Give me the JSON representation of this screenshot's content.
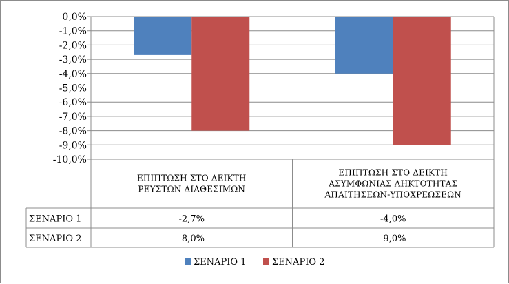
{
  "chart_data": {
    "type": "bar",
    "categories": [
      [
        "ΕΠΙΠΤΩΣΗ ΣΤΟ ΔΕΙΚΤΗ",
        "ΡΕΥΣΤΩΝ ΔΙΑΘΕΣΙΜΩΝ"
      ],
      [
        "ΕΠΙΠΤΩΣΗ ΣΤΟ ΔΕΙΚΤΗ",
        "ΑΣΥΜΦΩΝΙΑΣ ΛΗΚΤΟΤΗΤΑΣ",
        "ΑΠΑΙΤΗΣΕΩΝ-ΥΠΟΧΡΕΩΣΕΩΝ"
      ]
    ],
    "series": [
      {
        "name": "ΣΕΝΑΡΙΟ 1",
        "values": [
          -2.7,
          -4.0
        ],
        "labels": [
          "-2,7%",
          "-4,0%"
        ],
        "color": "#4f81bd"
      },
      {
        "name": "ΣΕΝΑΡΙΟ 2",
        "values": [
          -8.0,
          -9.0
        ],
        "labels": [
          "-8,0%",
          "-9,0%"
        ],
        "color": "#c0504d"
      }
    ],
    "ylim": [
      -10,
      0
    ],
    "yticks": [
      "0,0%",
      "-1,0%",
      "-2,0%",
      "-3,0%",
      "-4,0%",
      "-5,0%",
      "-6,0%",
      "-7,0%",
      "-8,0%",
      "-9,0%",
      "-10,0%"
    ],
    "grid": true,
    "legend": "bottom",
    "data_table": true
  }
}
